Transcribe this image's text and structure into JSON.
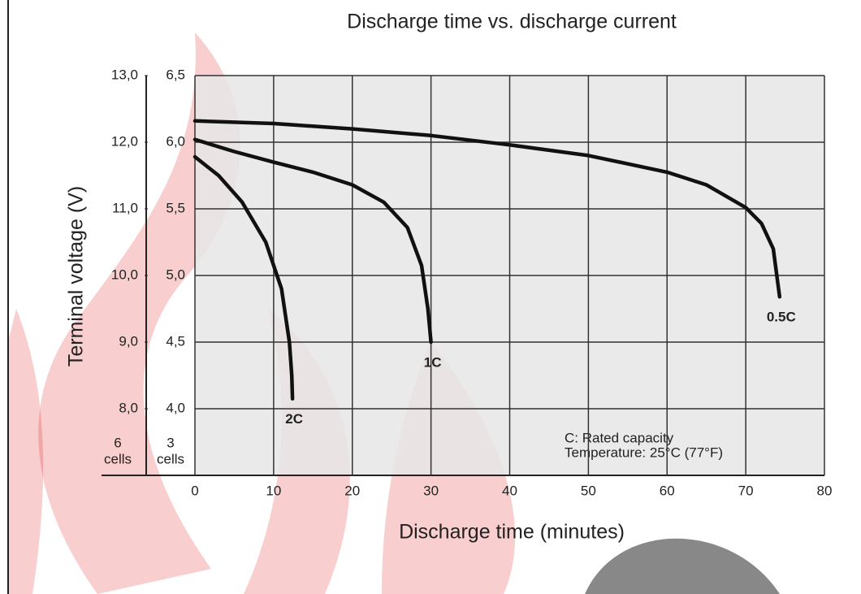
{
  "chart_data": {
    "type": "line",
    "title": "Discharge time vs. discharge current",
    "xlabel": "Discharge time (minutes)",
    "ylabel": "Terminal voltage (V)",
    "y_cells": {
      "count": "6",
      "unit": "cells"
    },
    "y2_cells": {
      "count": "3",
      "unit": "cells"
    },
    "annotations": [
      "C: Rated capacity",
      "Temperature: 25°C (77°F)"
    ],
    "xlim": [
      0,
      80
    ],
    "xticks": [
      0,
      10,
      20,
      30,
      40,
      50,
      60,
      70,
      80
    ],
    "ylim": [
      7,
      13
    ],
    "yticks": [
      {
        "value": 8,
        "label": "8,0"
      },
      {
        "value": 9,
        "label": "9,0"
      },
      {
        "value": 10,
        "label": "10,0"
      },
      {
        "value": 11,
        "label": "11,0"
      },
      {
        "value": 12,
        "label": "12,0"
      },
      {
        "value": 13,
        "label": "13,0"
      }
    ],
    "y2lim": [
      3.5,
      6.5
    ],
    "y2ticks": [
      {
        "value": 4,
        "label": "4,0"
      },
      {
        "value": 4.5,
        "label": "4,5"
      },
      {
        "value": 5,
        "label": "5,0"
      },
      {
        "value": 5.5,
        "label": "5,5"
      },
      {
        "value": 6,
        "label": "6,0"
      },
      {
        "value": 6.5,
        "label": "6,5"
      }
    ],
    "grid": true,
    "series": [
      {
        "name": "0.5C",
        "color": "#111111",
        "x": [
          0,
          10,
          20,
          30,
          40,
          50,
          60,
          65,
          70,
          72,
          73.5,
          74.3
        ],
        "values": [
          12.32,
          12.28,
          12.2,
          12.1,
          11.96,
          11.8,
          11.55,
          11.36,
          11.02,
          10.78,
          10.4,
          9.68
        ]
      },
      {
        "name": "1C",
        "color": "#111111",
        "x": [
          0,
          5,
          10,
          15,
          20,
          24,
          27,
          28.8,
          29.6,
          30
        ],
        "values": [
          12.04,
          11.86,
          11.7,
          11.55,
          11.36,
          11.1,
          10.72,
          10.15,
          9.5,
          9.0
        ]
      },
      {
        "name": "2C",
        "color": "#111111",
        "x": [
          0,
          3,
          6,
          9,
          11,
          12,
          12.3,
          12.4
        ],
        "values": [
          11.78,
          11.5,
          11.1,
          10.5,
          9.8,
          9.0,
          8.5,
          8.15
        ]
      }
    ]
  }
}
